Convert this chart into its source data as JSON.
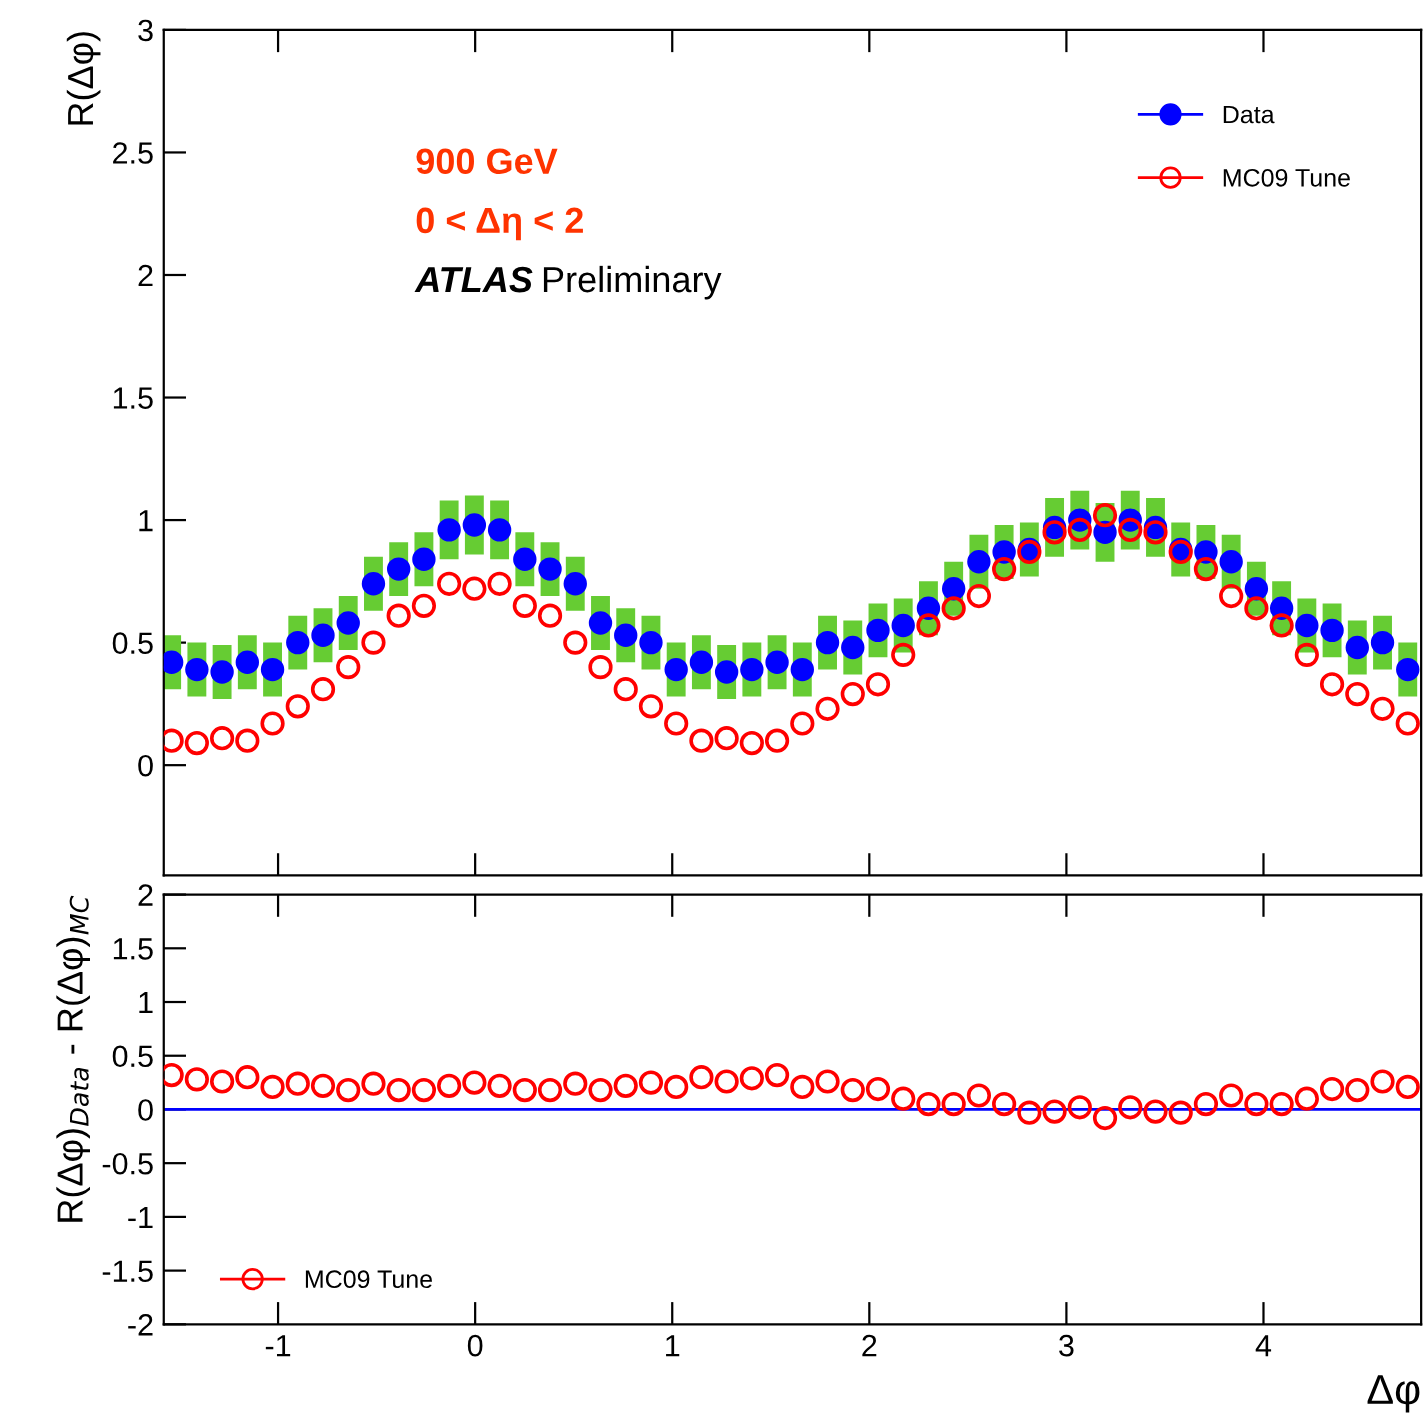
{
  "chart_data": [
    {
      "type": "scatter",
      "ylabel": "R(Δφ)",
      "annotations": [
        "900 GeV",
        "0 < Δη < 2",
        "ATLAS",
        "Preliminary"
      ],
      "x": [
        -1.54,
        -1.412,
        -1.284,
        -1.156,
        -1.028,
        -0.9,
        -0.772,
        -0.644,
        -0.516,
        -0.388,
        -0.26,
        -0.132,
        -0.004,
        0.124,
        0.252,
        0.38,
        0.508,
        0.636,
        0.764,
        0.892,
        1.02,
        1.148,
        1.276,
        1.404,
        1.532,
        1.66,
        1.788,
        1.916,
        2.044,
        2.172,
        2.3,
        2.428,
        2.556,
        2.684,
        2.812,
        2.94,
        3.068,
        3.196,
        3.324,
        3.452,
        3.58,
        3.708,
        3.836,
        3.964,
        4.092,
        4.22,
        4.348,
        4.476,
        4.604,
        4.732
      ],
      "series": [
        {
          "name": "Data",
          "color": "#0000ff",
          "marker": "circle",
          "values": [
            0.42,
            0.39,
            0.38,
            0.42,
            0.39,
            0.5,
            0.53,
            0.58,
            0.74,
            0.8,
            0.84,
            0.96,
            0.98,
            0.96,
            0.84,
            0.8,
            0.74,
            0.58,
            0.53,
            0.5,
            0.39,
            0.42,
            0.38,
            0.39,
            0.42,
            0.39,
            0.5,
            0.48,
            0.55,
            0.57,
            0.64,
            0.72,
            0.83,
            0.87,
            0.88,
            0.97,
            1.0,
            0.95,
            1.0,
            0.97,
            0.88,
            0.87,
            0.83,
            0.72,
            0.64,
            0.57,
            0.55,
            0.48,
            0.5,
            0.39
          ],
          "errors": [
            0.11,
            0.11,
            0.11,
            0.11,
            0.11,
            0.11,
            0.11,
            0.11,
            0.11,
            0.11,
            0.11,
            0.12,
            0.12,
            0.12,
            0.11,
            0.11,
            0.11,
            0.11,
            0.11,
            0.11,
            0.11,
            0.11,
            0.11,
            0.11,
            0.11,
            0.11,
            0.11,
            0.11,
            0.11,
            0.11,
            0.11,
            0.11,
            0.11,
            0.11,
            0.11,
            0.12,
            0.12,
            0.12,
            0.12,
            0.12,
            0.11,
            0.11,
            0.11,
            0.11,
            0.11,
            0.11,
            0.11,
            0.11,
            0.11,
            0.11
          ]
        },
        {
          "name": "MC09 Tune",
          "color": "#ff0000",
          "marker": "circle",
          "values": [
            0.1,
            0.09,
            0.11,
            0.1,
            0.17,
            0.24,
            0.31,
            0.4,
            0.5,
            0.61,
            0.65,
            0.74,
            0.72,
            0.74,
            0.65,
            0.61,
            0.5,
            0.4,
            0.31,
            0.24,
            0.17,
            0.1,
            0.11,
            0.09,
            0.1,
            0.17,
            0.23,
            0.29,
            0.33,
            0.45,
            0.57,
            0.64,
            0.69,
            0.8,
            0.87,
            0.95,
            0.96,
            1.02,
            0.96,
            0.95,
            0.87,
            0.8,
            0.69,
            0.64,
            0.57,
            0.45,
            0.33,
            0.29,
            0.23,
            0.17
          ]
        }
      ],
      "xlim": [
        -1.58,
        4.8
      ],
      "xticks": [
        -1,
        0,
        1,
        2,
        3,
        4
      ],
      "ylim": [
        -0.45,
        3
      ],
      "yticks": [
        0,
        0.5,
        1,
        1.5,
        2,
        2.5,
        3
      ],
      "tick_labels": "y",
      "legend": "top right",
      "grid": false
    },
    {
      "type": "scatter",
      "ylabel": "R(Δφ)$_{Data}$ - R(Δφ)$_{MC}$",
      "xlabel": "Δφ",
      "x": [
        -1.54,
        -1.412,
        -1.284,
        -1.156,
        -1.028,
        -0.9,
        -0.772,
        -0.644,
        -0.516,
        -0.388,
        -0.26,
        -0.132,
        -0.004,
        0.124,
        0.252,
        0.38,
        0.508,
        0.636,
        0.764,
        0.892,
        1.02,
        1.148,
        1.276,
        1.404,
        1.532,
        1.66,
        1.788,
        1.916,
        2.044,
        2.172,
        2.3,
        2.428,
        2.556,
        2.684,
        2.812,
        2.94,
        3.068,
        3.196,
        3.324,
        3.452,
        3.58,
        3.708,
        3.836,
        3.964,
        4.092,
        4.22,
        4.348,
        4.476,
        4.604,
        4.732
      ],
      "series": [
        {
          "name": "MC09 Tune",
          "color": "#ff0000",
          "marker": "circle",
          "values": [
            0.32,
            0.28,
            0.26,
            0.3,
            0.21,
            0.24,
            0.22,
            0.18,
            0.24,
            0.18,
            0.18,
            0.22,
            0.25,
            0.22,
            0.18,
            0.18,
            0.24,
            0.18,
            0.22,
            0.25,
            0.21,
            0.3,
            0.26,
            0.29,
            0.32,
            0.21,
            0.26,
            0.18,
            0.19,
            0.1,
            0.05,
            0.05,
            0.13,
            0.05,
            -0.03,
            -0.02,
            0.02,
            -0.08,
            0.02,
            -0.02,
            -0.03,
            0.05,
            0.13,
            0.05,
            0.05,
            0.1,
            0.19,
            0.18,
            0.26,
            0.21
          ]
        }
      ],
      "ref_lines": [
        {
          "axis": "y",
          "value": 0,
          "color": "#0000ff"
        }
      ],
      "xlim": [
        -1.58,
        4.8
      ],
      "xticks": [
        -1,
        0,
        1,
        2,
        3,
        4
      ],
      "ylim": [
        -2,
        2
      ],
      "yticks": [
        -2,
        -1.5,
        -1,
        -0.5,
        0,
        0.5,
        1,
        1.5,
        2
      ],
      "legend": "bottom left",
      "grid": false
    }
  ]
}
